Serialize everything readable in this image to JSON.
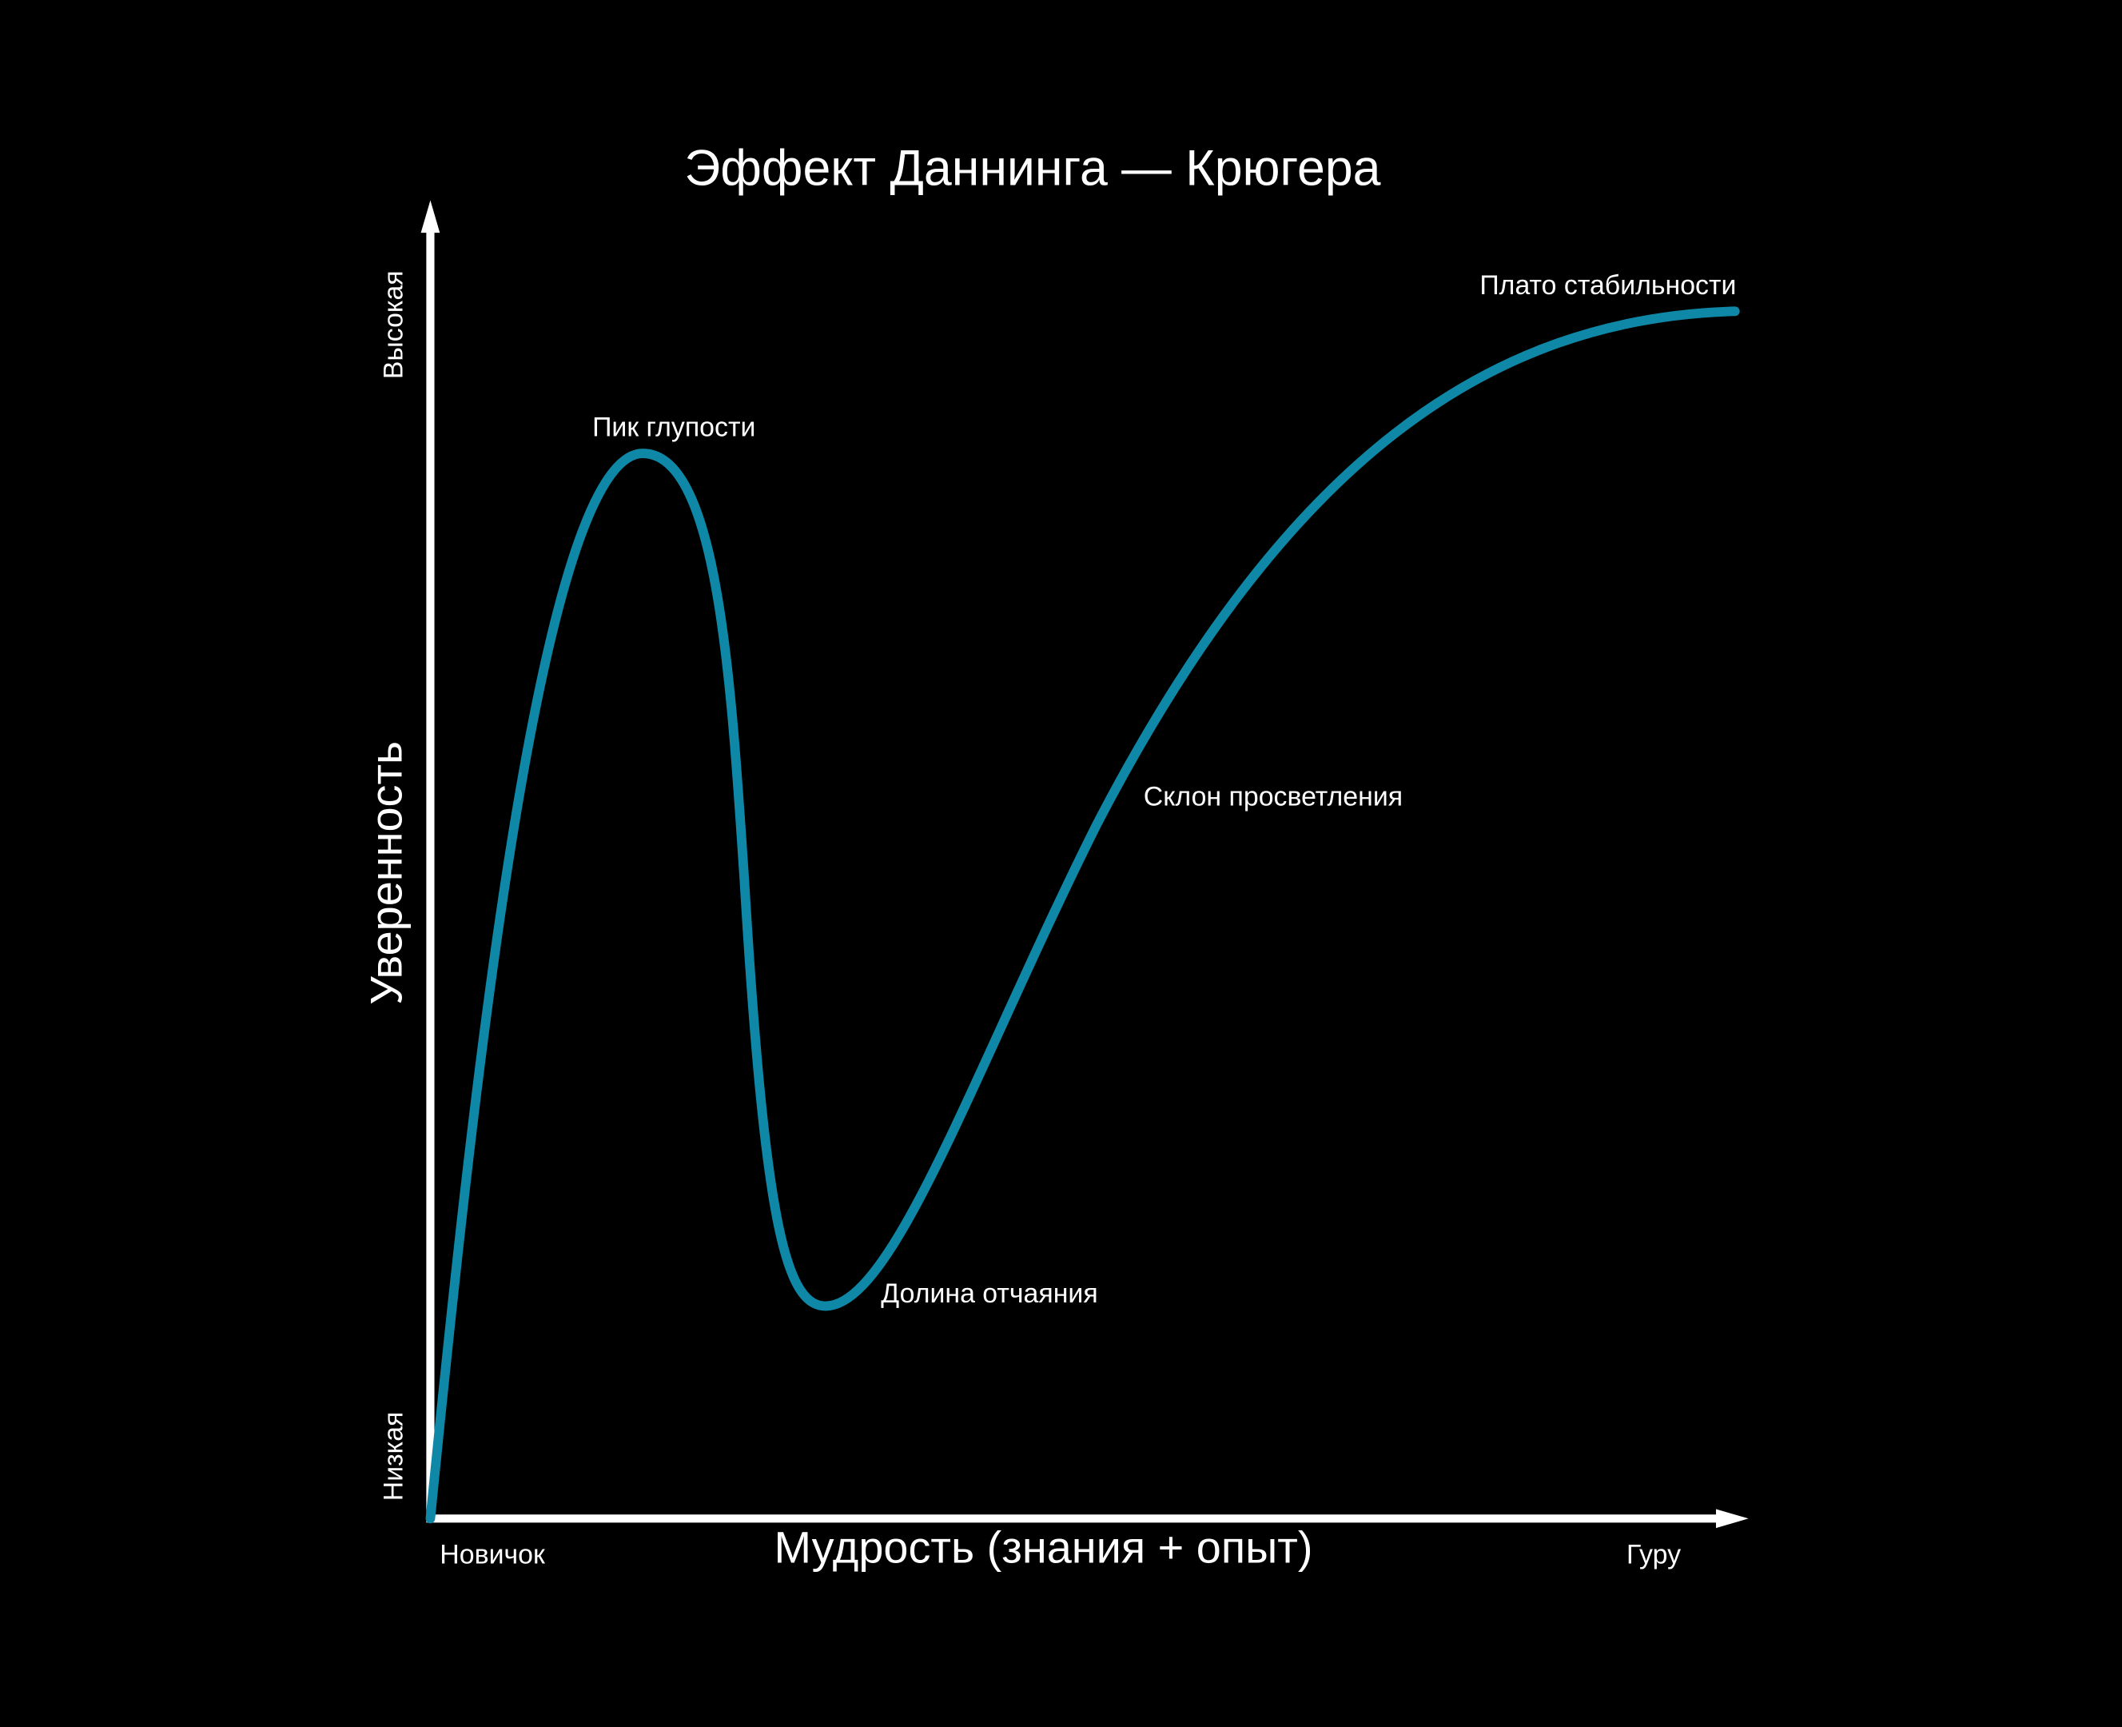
{
  "title": "Эффект Даннинга — Крюгера",
  "axes": {
    "y_label": "Уверенность",
    "y_high": "Высокая",
    "y_low": "Низкая",
    "x_label": "Мудрость (знания + опыт)",
    "x_low": "Новичок",
    "x_high": "Гуру"
  },
  "annotations": [
    "Пик глупости",
    "Долина отчаяния",
    "Склон просветления",
    "Плато стабильности"
  ]
}
